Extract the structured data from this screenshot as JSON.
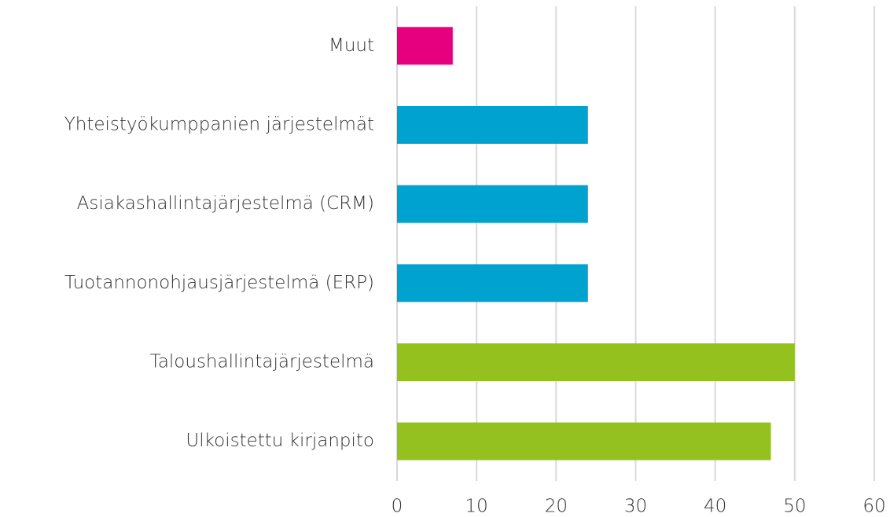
{
  "chart_data": {
    "type": "barh",
    "categories": [
      "Muut",
      "Yhteistyökumppanien järjestelmät",
      "Asiakashallintajärjestelmä (CRM)",
      "Tuotannonohjausjärjestelmä (ERP)",
      "Taloushallintajärjestelmä",
      "Ulkoistettu kirjanpito"
    ],
    "values": [
      7,
      24,
      24,
      24,
      50,
      47
    ],
    "colors": [
      "#e6007e",
      "#00a3cf",
      "#00a3cf",
      "#00a3cf",
      "#95c11f",
      "#95c11f"
    ],
    "xlim": [
      0,
      60
    ],
    "xticks": [
      0,
      10,
      20,
      30,
      40,
      50,
      60
    ],
    "grid": true
  }
}
